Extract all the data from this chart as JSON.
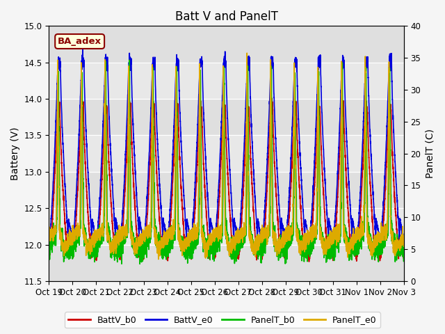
{
  "title": "Batt V and PanelT",
  "ylabel_left": "Battery (V)",
  "ylabel_right": "PanelT (C)",
  "ylim_left": [
    11.5,
    15.0
  ],
  "ylim_right": [
    0,
    40
  ],
  "yticks_left": [
    11.5,
    12.0,
    12.5,
    13.0,
    13.5,
    14.0,
    14.5,
    15.0
  ],
  "yticks_right": [
    0,
    5,
    10,
    15,
    20,
    25,
    30,
    35,
    40
  ],
  "xtick_labels": [
    "Oct 19",
    "Oct 20",
    "Oct 21",
    "Oct 22",
    "Oct 23",
    "Oct 24",
    "Oct 25",
    "Oct 26",
    "Oct 27",
    "Oct 28",
    "Oct 29",
    "Oct 30",
    "Oct 31",
    "Nov 1",
    "Nov 2",
    "Nov 3"
  ],
  "legend_labels": [
    "BattV_b0",
    "BattV_e0",
    "PanelT_b0",
    "PanelT_e0"
  ],
  "legend_colors": [
    "#cc0000",
    "#0000dd",
    "#00bb00",
    "#ddaa00"
  ],
  "annotation_text": "BA_adex",
  "annotation_color": "#8b0000",
  "background_color": "#f5f5f5",
  "plot_bg_color": "#e8e8e8",
  "title_fontsize": 12,
  "label_fontsize": 10,
  "tick_fontsize": 8.5,
  "linewidth": 1.2
}
